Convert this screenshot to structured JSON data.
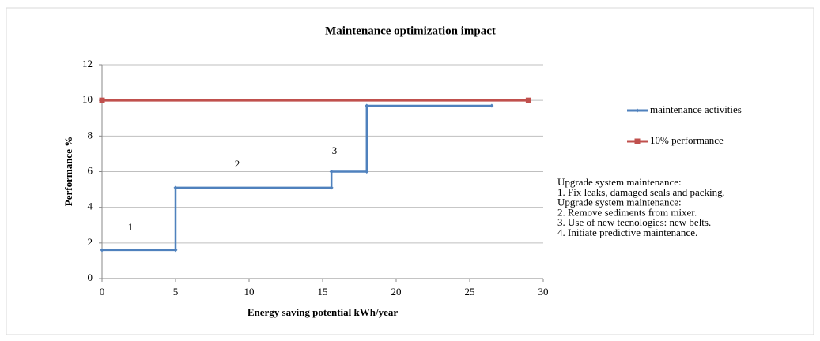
{
  "chart_data": {
    "type": "line",
    "title": "Maintenance optimization impact",
    "xlabel": "Energy saving potential  kWh/year",
    "ylabel": "Performance %",
    "series": [
      {
        "name": "maintenance activities",
        "color": "#4f81bd",
        "x": [
          0,
          5,
          5,
          15.6,
          15.6,
          18,
          18,
          26.5
        ],
        "values": [
          1.6,
          1.6,
          5.1,
          5.1,
          6,
          6,
          9.7,
          9.7
        ]
      },
      {
        "name": "10% performance",
        "color": "#c0504d",
        "x": [
          0,
          29
        ],
        "values": [
          10,
          10
        ]
      }
    ],
    "xlim": [
      0,
      30
    ],
    "xticks": [
      0,
      5,
      10,
      15,
      20,
      25,
      30
    ],
    "ylim": [
      0,
      12
    ],
    "yticks": [
      0,
      2,
      4,
      6,
      8,
      10,
      12
    ],
    "grid": true,
    "legend": "right",
    "annotations": [
      "1",
      "2",
      "3"
    ],
    "notes": [
      "Upgrade system maintenance:",
      "1. Fix leaks, damaged seals and packing.",
      "Upgrade system maintenance:",
      "2. Remove sediments from mixer.",
      "3. Use of new tecnologies: new belts.",
      "4. Initiate predictive maintenance."
    ]
  }
}
